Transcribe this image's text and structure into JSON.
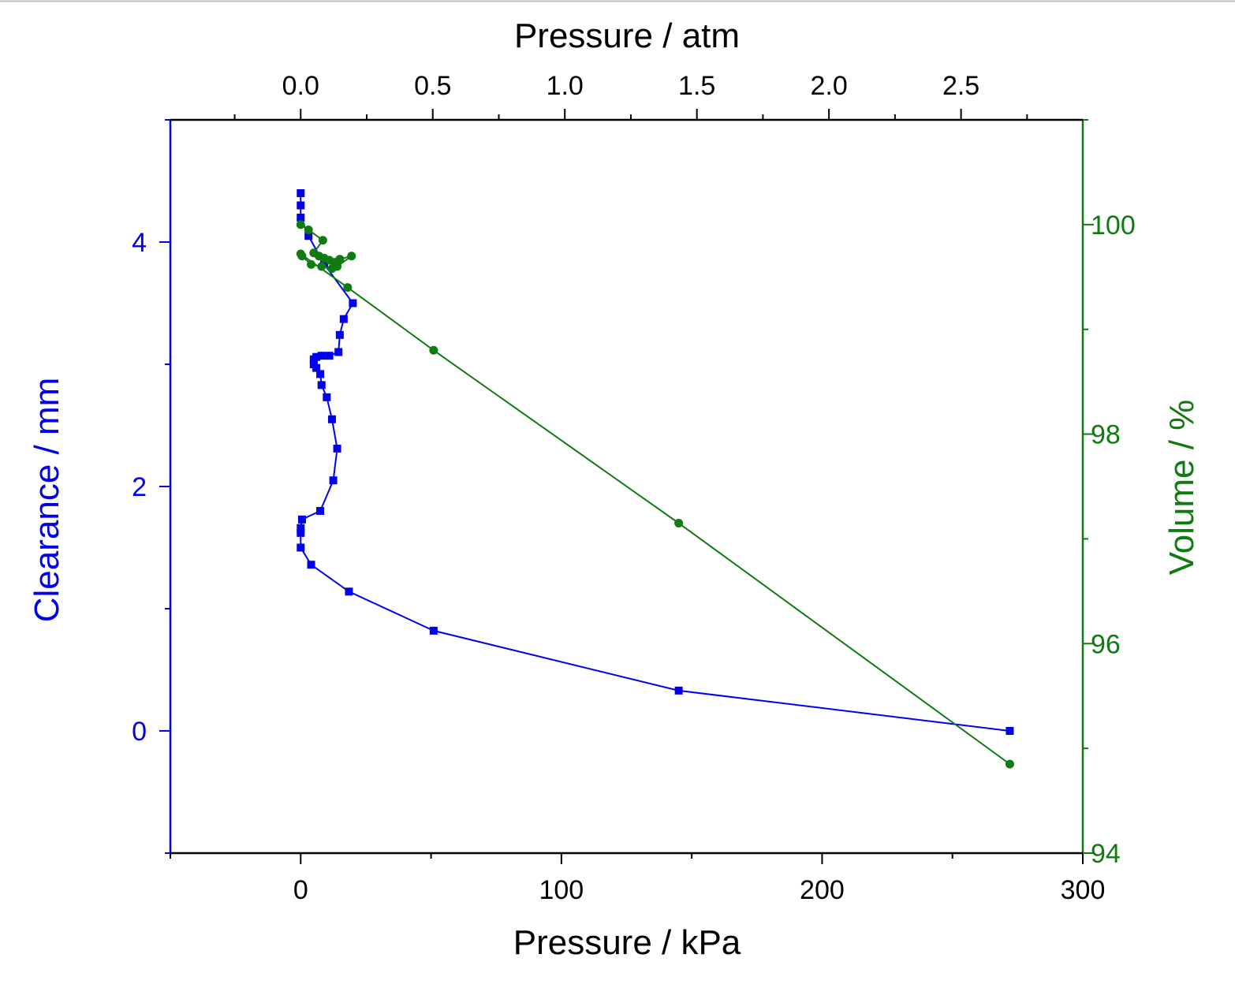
{
  "chart_data": {
    "type": "line",
    "title": "",
    "colors": {
      "clearance": "#0000ee",
      "volume": "#117a11",
      "frame": "#000000"
    },
    "x_bottom": {
      "label": "Pressure / kPa",
      "range": [
        -50,
        300
      ],
      "ticks": [
        0,
        100,
        200,
        300
      ],
      "tick_labels": [
        "0",
        "100",
        "200",
        "300"
      ]
    },
    "x_top": {
      "label": "Pressure / atm",
      "range": [
        -0.4935,
        2.961
      ],
      "ticks": [
        0.0,
        0.5,
        1.0,
        1.5,
        2.0,
        2.5
      ],
      "tick_labels": [
        "0.0",
        "0.5",
        "1.0",
        "1.5",
        "2.0",
        "2.5"
      ]
    },
    "y_left": {
      "label": "Clearance / mm",
      "range": [
        -1,
        5
      ],
      "ticks": [
        0,
        2,
        4
      ],
      "tick_labels": [
        "0",
        "2",
        "4"
      ]
    },
    "y_right": {
      "label": "Volume / %",
      "range": [
        94,
        101
      ],
      "ticks": [
        94,
        96,
        98,
        100
      ],
      "tick_labels": [
        "94",
        "96",
        "98",
        "100"
      ]
    },
    "grid": false,
    "series": [
      {
        "axis": "left",
        "marker": "square",
        "points": [
          [
            0.0,
            4.4
          ],
          [
            0.0,
            4.3
          ],
          [
            0.0,
            4.2
          ],
          [
            3.0,
            4.05
          ],
          [
            9.0,
            3.82
          ],
          [
            20.0,
            3.5
          ],
          [
            16.5,
            3.37
          ],
          [
            15.0,
            3.24
          ],
          [
            14.5,
            3.1
          ],
          [
            11.0,
            3.07
          ],
          [
            8.0,
            3.07
          ],
          [
            6.0,
            3.06
          ],
          [
            5.0,
            3.04
          ],
          [
            5.0,
            3.0
          ],
          [
            6.0,
            2.97
          ],
          [
            7.5,
            2.92
          ],
          [
            8.0,
            2.83
          ],
          [
            10.0,
            2.73
          ],
          [
            12.0,
            2.55
          ],
          [
            14.0,
            2.31
          ],
          [
            12.5,
            2.05
          ],
          [
            7.5,
            1.8
          ],
          [
            0.5,
            1.73
          ],
          [
            0.0,
            1.66
          ],
          [
            0.0,
            1.62
          ],
          [
            0.0,
            1.5
          ],
          [
            4.0,
            1.36
          ],
          [
            18.5,
            1.14
          ],
          [
            51.0,
            0.82
          ],
          [
            145.0,
            0.33
          ],
          [
            272.0,
            0.0
          ]
        ]
      },
      {
        "axis": "right",
        "marker": "circle",
        "points": [
          [
            0.0,
            100.0
          ],
          [
            3.0,
            99.95
          ],
          [
            8.5,
            99.85
          ],
          [
            5.0,
            99.73
          ],
          [
            7.0,
            99.7
          ],
          [
            9.0,
            99.68
          ],
          [
            11.0,
            99.66
          ],
          [
            13.0,
            99.64
          ],
          [
            15.0,
            99.67
          ],
          [
            19.5,
            99.7
          ],
          [
            14.0,
            99.6
          ],
          [
            12.0,
            99.58
          ],
          [
            8.0,
            99.6
          ],
          [
            4.0,
            99.62
          ],
          [
            0.5,
            99.7
          ],
          [
            0.0,
            99.72
          ],
          [
            18.0,
            99.4
          ],
          [
            51.0,
            98.8
          ],
          [
            145.0,
            97.15
          ],
          [
            272.0,
            94.85
          ]
        ]
      }
    ]
  }
}
